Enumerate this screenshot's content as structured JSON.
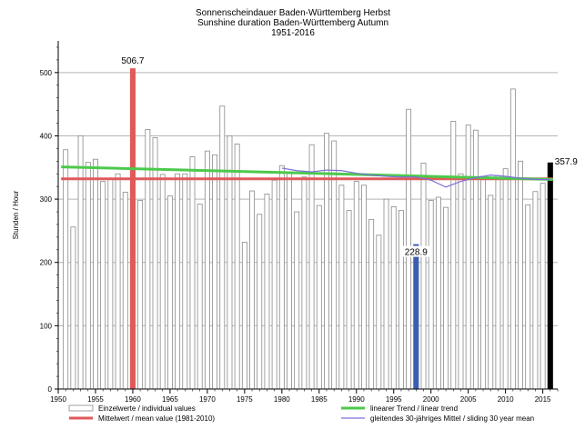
{
  "chart_data": {
    "type": "bar",
    "title_lines": [
      "Sonnenscheindauer Baden-Württemberg Herbst",
      "Sunshine duration Baden-Württemberg Autumn",
      "1951-2016"
    ],
    "ylabel": "Stunden / Hour",
    "xlabel": "",
    "xlim": [
      1950,
      2017
    ],
    "ylim": [
      0,
      550
    ],
    "x_ticks": [
      1950,
      1955,
      1960,
      1965,
      1970,
      1975,
      1980,
      1985,
      1990,
      1995,
      2000,
      2005,
      2010,
      2015
    ],
    "x_tick_labels": [
      "1950",
      "1955",
      "1960",
      "1965",
      "1970",
      "1975",
      "1980",
      "1985",
      "1990",
      "1995",
      "2000",
      "2005",
      "2010",
      "2015"
    ],
    "y_ticks": [
      0,
      100,
      200,
      300,
      400,
      500
    ],
    "y_tick_labels": [
      "0",
      "100",
      "200",
      "300",
      "400",
      "500"
    ],
    "grid": true,
    "years": [
      1951,
      1952,
      1953,
      1954,
      1955,
      1956,
      1957,
      1958,
      1959,
      1960,
      1961,
      1962,
      1963,
      1964,
      1965,
      1966,
      1967,
      1968,
      1969,
      1970,
      1971,
      1972,
      1973,
      1974,
      1975,
      1976,
      1977,
      1978,
      1979,
      1980,
      1981,
      1982,
      1983,
      1984,
      1985,
      1986,
      1987,
      1988,
      1989,
      1990,
      1991,
      1992,
      1993,
      1994,
      1995,
      1996,
      1997,
      1998,
      1999,
      2000,
      2001,
      2002,
      2003,
      2004,
      2005,
      2006,
      2007,
      2008,
      2009,
      2010,
      2011,
      2012,
      2013,
      2014,
      2015,
      2016
    ],
    "values": [
      378,
      256,
      400,
      358,
      363,
      328,
      333,
      340,
      311,
      506.7,
      298,
      410,
      397,
      339,
      305,
      340,
      340,
      367,
      292,
      376,
      370,
      447,
      400,
      387,
      232,
      313,
      276,
      308,
      330,
      353,
      342,
      280,
      335,
      386,
      290,
      404,
      392,
      322,
      282,
      328,
      322,
      268,
      243,
      300,
      288,
      282,
      442,
      228.9,
      357,
      298,
      303,
      287,
      423,
      340,
      417,
      409,
      336,
      306,
      337,
      348,
      474,
      360,
      291,
      312,
      325,
      357.9
    ],
    "highlights": [
      {
        "year": 1960,
        "value": 506.7,
        "label": "506.7",
        "color": "#e05a5a"
      },
      {
        "year": 1998,
        "value": 228.9,
        "label": "228.9",
        "color": "#3b5fb0"
      },
      {
        "year": 2016,
        "value": 357.9,
        "label": "357.9",
        "color": "#000000"
      }
    ],
    "mean": {
      "value": 332,
      "color": "#e05a5a",
      "name": "Mittelwert / mean value (1981-2010)"
    },
    "trend": {
      "start": [
        1951,
        351
      ],
      "end": [
        2016,
        331
      ],
      "color": "#4cc94c",
      "name": "linearer Trend / linear trend"
    },
    "sliding_mean": {
      "name": "gleitendes 30-jähriges Mittel / sliding 30 year mean",
      "color": "#7b6fd6",
      "years": [
        1980,
        1982,
        1984,
        1986,
        1988,
        1990,
        1992,
        1994,
        1996,
        1998,
        2000,
        2002,
        2004,
        2006,
        2008,
        2010,
        2012,
        2014,
        2016
      ],
      "values": [
        349,
        345,
        343,
        346,
        345,
        341,
        338,
        336,
        335,
        335,
        330,
        319,
        328,
        334,
        338,
        336,
        333,
        331,
        331
      ]
    },
    "legend": {
      "placement": "bottom",
      "entries": [
        {
          "name": "Einzelwerte / individual values",
          "kind": "box"
        },
        {
          "name": "linearer Trend / linear trend",
          "kind": "line",
          "color": "#4cc94c"
        },
        {
          "name": "Mittelwert / mean value (1981-2010)",
          "kind": "line",
          "color": "#e05a5a"
        },
        {
          "name": "gleitendes 30-jähriges Mittel / sliding 30 year mean",
          "kind": "thin-line",
          "color": "#7b6fd6"
        }
      ]
    }
  }
}
